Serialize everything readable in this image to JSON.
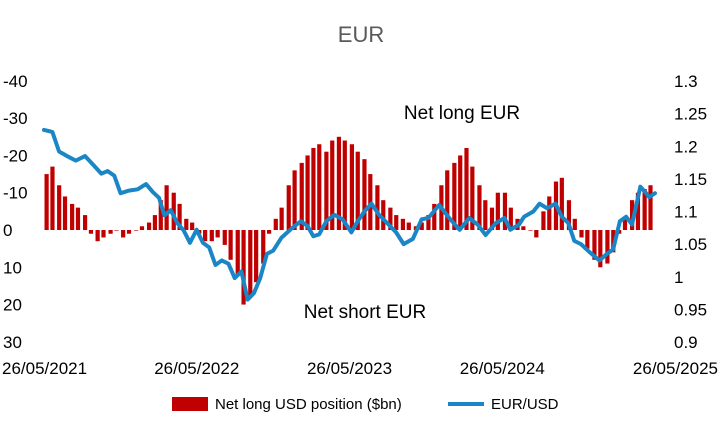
{
  "chart_data": {
    "type": "bar+line",
    "title": "EUR",
    "annotations": {
      "top": "Net long EUR",
      "bottom": "Net short EUR"
    },
    "left_axis": {
      "ylim": [
        -40,
        30
      ],
      "inverted": true,
      "tick_labels": [
        "-40",
        "-30",
        "-20",
        "-10",
        "0",
        "10",
        "20",
        "30"
      ]
    },
    "right_axis": {
      "ylim": [
        0.9,
        1.3
      ],
      "tick_labels": [
        "1.3",
        "1.25",
        "1.2",
        "1.15",
        "1.1",
        "1.05",
        "1",
        "0.95",
        "0.9"
      ]
    },
    "x_axis": {
      "range": [
        "2021-05-26",
        "2025-05-26"
      ],
      "tick_labels": [
        "26/05/2021",
        "26/05/2022",
        "26/05/2023",
        "26/05/2024",
        "26/05/2025"
      ]
    },
    "grid": false,
    "legend": {
      "placement": "bottom",
      "entries": [
        "Net long USD position ($bn)",
        "EUR/USD"
      ]
    },
    "colors": {
      "bars": "#c00000",
      "line": "#1b86c6"
    },
    "series": [
      {
        "name": "Net long USD position ($bn)",
        "kind": "bar",
        "axis": "left",
        "dates": [
          "2021-06-01",
          "2021-06-15",
          "2021-07-01",
          "2021-07-15",
          "2021-08-01",
          "2021-08-15",
          "2021-09-01",
          "2021-09-15",
          "2021-10-01",
          "2021-10-15",
          "2021-11-01",
          "2021-11-15",
          "2021-12-01",
          "2021-12-15",
          "2022-01-01",
          "2022-01-15",
          "2022-02-01",
          "2022-02-15",
          "2022-03-01",
          "2022-03-15",
          "2022-04-01",
          "2022-04-15",
          "2022-05-01",
          "2022-05-15",
          "2022-06-01",
          "2022-06-15",
          "2022-07-01",
          "2022-07-15",
          "2022-08-01",
          "2022-08-15",
          "2022-09-01",
          "2022-09-15",
          "2022-10-01",
          "2022-10-15",
          "2022-11-01",
          "2022-11-15",
          "2022-12-01",
          "2022-12-15",
          "2023-01-01",
          "2023-01-15",
          "2023-02-01",
          "2023-02-15",
          "2023-03-01",
          "2023-03-15",
          "2023-04-01",
          "2023-04-15",
          "2023-05-01",
          "2023-05-15",
          "2023-06-01",
          "2023-06-15",
          "2023-07-01",
          "2023-07-15",
          "2023-08-01",
          "2023-08-15",
          "2023-09-01",
          "2023-09-15",
          "2023-10-01",
          "2023-10-15",
          "2023-11-01",
          "2023-11-15",
          "2023-12-01",
          "2023-12-15",
          "2024-01-01",
          "2024-01-15",
          "2024-02-01",
          "2024-02-15",
          "2024-03-01",
          "2024-03-15",
          "2024-04-01",
          "2024-04-15",
          "2024-05-01",
          "2024-05-15",
          "2024-06-01",
          "2024-06-15",
          "2024-07-01",
          "2024-07-15",
          "2024-08-01",
          "2024-08-15",
          "2024-09-01",
          "2024-09-15",
          "2024-10-01",
          "2024-10-15",
          "2024-11-01",
          "2024-11-15",
          "2024-12-01",
          "2024-12-15",
          "2025-01-01",
          "2025-01-15",
          "2025-02-01",
          "2025-02-15",
          "2025-03-01",
          "2025-03-15",
          "2025-04-01",
          "2025-04-15",
          "2025-05-01",
          "2025-05-15"
        ],
        "values": [
          -15,
          -17,
          -12,
          -9,
          -7,
          -6,
          -4,
          1,
          3,
          2,
          1,
          0,
          2,
          1,
          0,
          -1,
          -2,
          -4,
          -8,
          -12,
          -10,
          -7,
          -3,
          -2,
          1,
          3,
          3,
          2,
          4,
          8,
          12,
          20,
          18,
          14,
          9,
          1,
          -3,
          -6,
          -12,
          -16,
          -18,
          -20,
          -22,
          -23,
          -21,
          -24,
          -25,
          -24,
          -23,
          -21,
          -19,
          -15,
          -12,
          -8,
          -6,
          -4,
          -3,
          -2,
          -1,
          -2,
          -4,
          -7,
          -12,
          -16,
          -18,
          -20,
          -22,
          -17,
          -12,
          -8,
          -6,
          -10,
          -10,
          -6,
          -3,
          -1,
          0,
          2,
          -5,
          -9,
          -13,
          -14,
          -8,
          -3,
          2,
          5,
          8,
          10,
          9,
          6,
          1,
          -3,
          -8,
          -10,
          -11,
          -12
        ]
      },
      {
        "name": "EUR/USD",
        "kind": "line",
        "axis": "right",
        "dates": [
          "2021-05-26",
          "2021-06-15",
          "2021-07-01",
          "2021-07-20",
          "2021-08-10",
          "2021-09-01",
          "2021-09-20",
          "2021-10-10",
          "2021-10-25",
          "2021-11-10",
          "2021-11-25",
          "2021-12-15",
          "2022-01-05",
          "2022-01-25",
          "2022-02-10",
          "2022-02-25",
          "2022-03-10",
          "2022-03-25",
          "2022-04-10",
          "2022-04-25",
          "2022-05-10",
          "2022-05-26",
          "2022-06-10",
          "2022-06-25",
          "2022-07-10",
          "2022-07-25",
          "2022-08-10",
          "2022-08-25",
          "2022-09-10",
          "2022-09-25",
          "2022-10-10",
          "2022-10-25",
          "2022-11-10",
          "2022-11-25",
          "2022-12-15",
          "2023-01-10",
          "2023-01-30",
          "2023-02-15",
          "2023-03-01",
          "2023-03-15",
          "2023-04-01",
          "2023-04-20",
          "2023-05-10",
          "2023-05-31",
          "2023-06-15",
          "2023-07-01",
          "2023-07-18",
          "2023-08-05",
          "2023-08-25",
          "2023-09-15",
          "2023-10-03",
          "2023-10-25",
          "2023-11-15",
          "2023-12-01",
          "2023-12-27",
          "2024-01-20",
          "2024-02-14",
          "2024-03-08",
          "2024-03-28",
          "2024-04-16",
          "2024-05-10",
          "2024-05-31",
          "2024-06-14",
          "2024-07-05",
          "2024-07-17",
          "2024-08-08",
          "2024-08-23",
          "2024-09-10",
          "2024-09-30",
          "2024-10-15",
          "2024-10-31",
          "2024-11-14",
          "2024-11-30",
          "2024-12-20",
          "2025-01-13",
          "2025-01-31",
          "2025-02-15",
          "2025-03-03",
          "2025-03-18",
          "2025-04-01",
          "2025-04-21",
          "2025-05-05",
          "2025-05-12",
          "2025-05-26"
        ],
        "values": [
          1.225,
          1.222,
          1.192,
          1.185,
          1.178,
          1.185,
          1.172,
          1.158,
          1.162,
          1.155,
          1.128,
          1.132,
          1.134,
          1.142,
          1.13,
          1.121,
          1.094,
          1.102,
          1.082,
          1.071,
          1.052,
          1.072,
          1.052,
          1.045,
          1.018,
          1.025,
          1.02,
          0.998,
          1.008,
          0.965,
          0.975,
          0.998,
          1.035,
          1.04,
          1.06,
          1.075,
          1.085,
          1.078,
          1.062,
          1.065,
          1.085,
          1.095,
          1.088,
          1.068,
          1.085,
          1.1,
          1.112,
          1.095,
          1.082,
          1.068,
          1.05,
          1.058,
          1.088,
          1.09,
          1.11,
          1.09,
          1.072,
          1.09,
          1.08,
          1.064,
          1.082,
          1.09,
          1.072,
          1.08,
          1.092,
          1.1,
          1.112,
          1.105,
          1.112,
          1.092,
          1.082,
          1.055,
          1.05,
          1.038,
          1.025,
          1.035,
          1.042,
          1.085,
          1.092,
          1.08,
          1.138,
          1.128,
          1.122,
          1.128
        ]
      }
    ]
  }
}
